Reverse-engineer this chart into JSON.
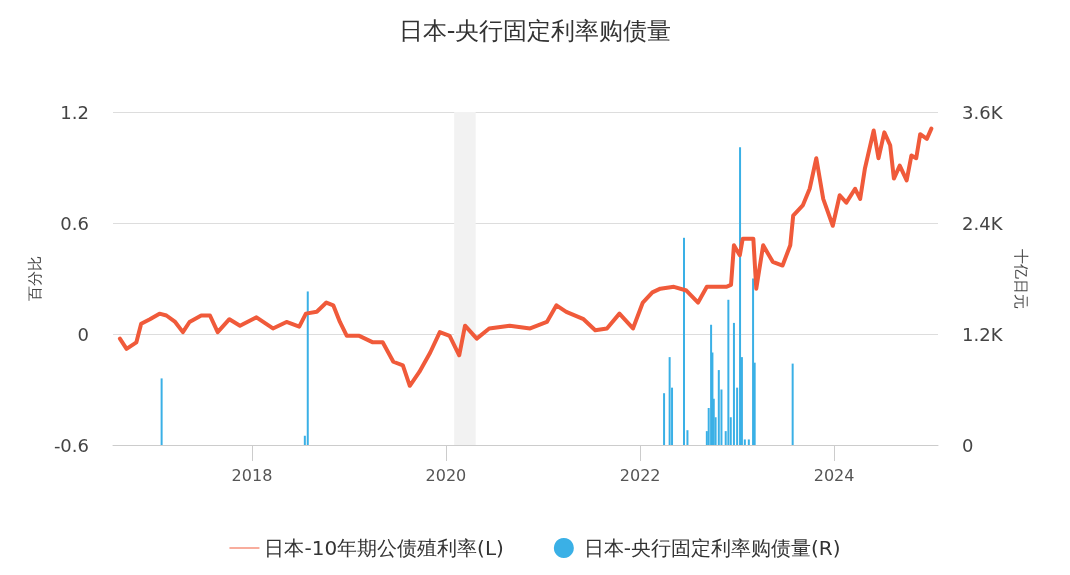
{
  "chart_data": {
    "type": "line",
    "title": "日本-央行固定利率购债量",
    "ylabel": "百分比",
    "y2label": "十亿日元",
    "xlim": [
      "2016-07-27",
      "2025-01-26"
    ],
    "xticks": [
      "2018",
      "2020",
      "2022",
      "2024"
    ],
    "ylim": [
      -0.6,
      1.2
    ],
    "yticks": [
      -0.6,
      0,
      0.6,
      1.2
    ],
    "y2lim": [
      0,
      3600
    ],
    "y2ticks": [
      {
        "value": 0,
        "label": "0"
      },
      {
        "value": 1200,
        "label": "1.2K"
      },
      {
        "value": 2400,
        "label": "2.4K"
      },
      {
        "value": 3600,
        "label": "3.6K"
      }
    ],
    "grid": "y",
    "legend": "bottom",
    "marker": "none",
    "line_style": "solid",
    "bands": [
      {
        "axis": "x",
        "from": "2020-02-01",
        "to": "2020-04-22",
        "color": "#f2f2f2"
      }
    ],
    "series": [
      {
        "name": "日本-10年期公债殖利率(L)",
        "color": "#f05a3a",
        "x": [
          "2016-08-22",
          "2016-09-16",
          "2016-10-23",
          "2016-11-10",
          "2016-12-13",
          "2017-01-18",
          "2017-02-13",
          "2017-03-18",
          "2017-04-16",
          "2017-05-11",
          "2017-06-24",
          "2017-07-27",
          "2017-08-25",
          "2017-10-08",
          "2017-11-17",
          "2018-01-18",
          "2018-03-21",
          "2018-05-11",
          "2018-06-28",
          "2018-07-23",
          "2018-09-02",
          "2018-10-08",
          "2018-11-03",
          "2018-11-28",
          "2018-12-24",
          "2019-02-09",
          "2019-04-01",
          "2019-05-08",
          "2019-06-17",
          "2019-07-23",
          "2019-08-18",
          "2019-09-23",
          "2019-11-03",
          "2019-12-09",
          "2020-01-15",
          "2020-02-20",
          "2020-03-13",
          "2020-04-26",
          "2020-06-12",
          "2020-08-28",
          "2020-11-13",
          "2021-01-15",
          "2021-02-20",
          "2021-03-29",
          "2021-06-02",
          "2021-07-16",
          "2021-08-29",
          "2021-10-15",
          "2021-12-05",
          "2022-01-11",
          "2022-02-16",
          "2022-03-18",
          "2022-05-08",
          "2022-06-24",
          "2022-08-07",
          "2022-09-09",
          "2022-11-21",
          "2022-12-09",
          "2022-12-20",
          "2023-01-11",
          "2023-01-22",
          "2023-03-03",
          "2023-03-14",
          "2023-04-09",
          "2023-05-15",
          "2023-06-21",
          "2023-07-20",
          "2023-07-31",
          "2023-09-05",
          "2023-10-01",
          "2023-10-26",
          "2023-11-21",
          "2023-12-27",
          "2024-01-22",
          "2024-02-16",
          "2024-03-20",
          "2024-04-08",
          "2024-04-26",
          "2024-05-29",
          "2024-06-16",
          "2024-07-08",
          "2024-07-30",
          "2024-08-13",
          "2024-09-04",
          "2024-09-30",
          "2024-10-18",
          "2024-11-05",
          "2024-11-20",
          "2024-12-15",
          "2025-01-01"
        ],
        "values": [
          -0.025,
          -0.08,
          -0.045,
          0.055,
          0.08,
          0.11,
          0.1,
          0.065,
          0.01,
          0.065,
          0.1,
          0.1,
          0.01,
          0.08,
          0.045,
          0.09,
          0.03,
          0.065,
          0.04,
          0.11,
          0.12,
          0.17,
          0.155,
          0.065,
          -0.01,
          -0.01,
          -0.045,
          -0.045,
          -0.15,
          -0.17,
          -0.28,
          -0.205,
          -0.1,
          0.01,
          -0.01,
          -0.115,
          0.045,
          -0.025,
          0.03,
          0.045,
          0.03,
          0.065,
          0.155,
          0.12,
          0.08,
          0.02,
          0.03,
          0.11,
          0.03,
          0.17,
          0.225,
          0.245,
          0.255,
          0.235,
          0.17,
          0.255,
          0.255,
          0.265,
          0.48,
          0.425,
          0.515,
          0.515,
          0.245,
          0.48,
          0.39,
          0.37,
          0.48,
          0.64,
          0.695,
          0.785,
          0.95,
          0.73,
          0.585,
          0.75,
          0.71,
          0.785,
          0.73,
          0.895,
          1.1,
          0.95,
          1.09,
          1.02,
          0.84,
          0.91,
          0.83,
          0.965,
          0.95,
          1.08,
          1.055,
          1.11
        ]
      },
      {
        "name": "日本-央行固定利率购债量(R)",
        "type": "bar",
        "axis": "y2",
        "color": "#3ab0e6",
        "x": [
          "2017-01-26",
          "2018-07-19",
          "2018-07-30",
          "2022-04-01",
          "2022-04-22",
          "2022-05-01",
          "2022-06-15",
          "2022-06-28",
          "2022-09-09",
          "2022-09-16",
          "2022-09-25",
          "2022-09-30",
          "2022-10-05",
          "2022-10-12",
          "2022-10-24",
          "2022-11-03",
          "2022-11-19",
          "2022-11-29",
          "2022-12-08",
          "2022-12-20",
          "2023-01-01",
          "2023-01-12",
          "2023-01-19",
          "2023-01-30",
          "2023-02-14",
          "2023-03-02",
          "2023-03-08",
          "2023-07-29"
        ],
        "values": [
          720,
          100,
          1660,
          560,
          950,
          620,
          2240,
          160,
          150,
          400,
          1300,
          1000,
          500,
          300,
          810,
          600,
          150,
          1570,
          300,
          1320,
          620,
          3220,
          950,
          60,
          60,
          1800,
          890,
          880
        ]
      }
    ]
  }
}
